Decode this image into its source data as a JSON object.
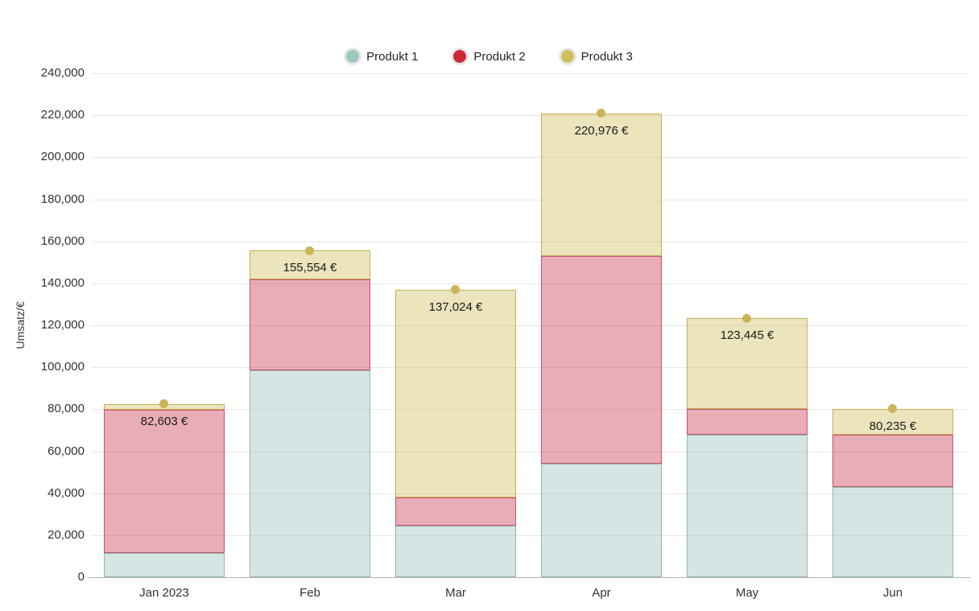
{
  "chart_data": {
    "type": "bar",
    "stacked": true,
    "title": "",
    "xlabel": "",
    "ylabel": "Umsatz/€",
    "ylim": [
      0,
      240000
    ],
    "ytick_step": 20000,
    "ytick_labels": [
      "0",
      "20,000",
      "40,000",
      "60,000",
      "80,000",
      "100,000",
      "120,000",
      "140,000",
      "160,000",
      "180,000",
      "200,000",
      "220,000",
      "240,000"
    ],
    "grid": true,
    "legend_position": "top",
    "categories": [
      "Jan 2023",
      "Feb",
      "Mar",
      "Apr",
      "May",
      "Jun"
    ],
    "series": [
      {
        "name": "Produkt 1",
        "color": "#9fc6c3",
        "fill": "rgba(159,198,195,0.45)",
        "border": "rgba(137,177,174,0.9)",
        "values": [
          11500,
          98500,
          24500,
          54000,
          67900,
          42900
        ]
      },
      {
        "name": "Produkt 2",
        "color": "#cc2936",
        "fill": "rgba(198,40,66,0.38)",
        "border": "rgba(178,36,59,0.65)",
        "values": [
          68200,
          43200,
          13500,
          99000,
          12100,
          25100
        ]
      },
      {
        "name": "Produkt 3",
        "color": "#d2bf5f",
        "fill": "rgba(210,191,95,0.42)",
        "border": "rgba(186,164,64,0.8)",
        "values": [
          2903,
          13854,
          99024,
          67976,
          43445,
          12235
        ]
      }
    ],
    "totals": [
      82603,
      155554,
      137024,
      220976,
      123445,
      80235
    ],
    "total_labels": [
      "82,603 €",
      "155,554 €",
      "137,024 €",
      "220,976 €",
      "123,445 €",
      "80,235 €"
    ],
    "marker_color": "#c9b45a",
    "accent_colors": {
      "grid": "#e7e7e7",
      "axis": "#b3b3b3",
      "text": "#333333"
    }
  }
}
